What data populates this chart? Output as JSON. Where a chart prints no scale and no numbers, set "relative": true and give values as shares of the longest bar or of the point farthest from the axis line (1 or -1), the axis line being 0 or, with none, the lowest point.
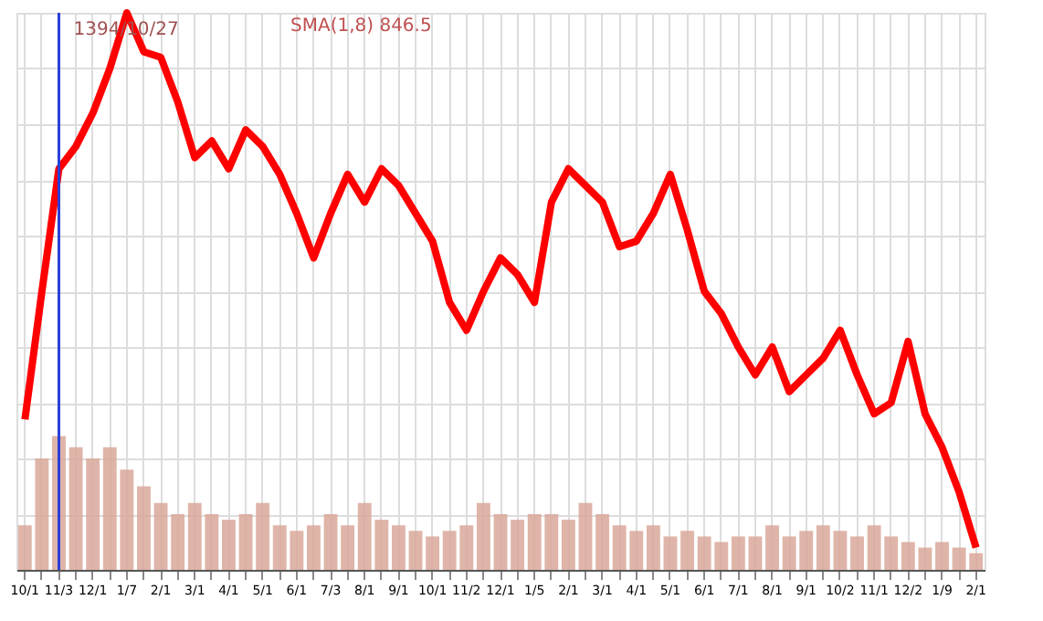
{
  "chart_data": {
    "type": "line",
    "relative": true,
    "grid": true,
    "line_style": "solid",
    "marker": "none",
    "categories": [
      "10/1",
      null,
      "11/3",
      null,
      "12/1",
      null,
      "1/7",
      null,
      "2/1",
      null,
      "3/1",
      null,
      "4/1",
      null,
      "5/1",
      null,
      "6/1",
      null,
      "7/3",
      null,
      "8/1",
      null,
      "9/1",
      null,
      "10/1",
      null,
      "11/2",
      null,
      "12/1",
      null,
      "1/5",
      null,
      "2/1",
      null,
      "3/1",
      null,
      "4/1",
      null,
      "5/1",
      null,
      "6/1",
      null,
      "7/1",
      null,
      "8/1",
      null,
      "9/1",
      null,
      "10/2",
      null,
      "11/1",
      null,
      "12/2",
      null,
      "1/9",
      null,
      "2/1"
    ],
    "series": [
      {
        "type": "bar",
        "color": "#d9a89a",
        "values": [
          0.08,
          0.2,
          0.24,
          0.22,
          0.2,
          0.22,
          0.18,
          0.15,
          0.12,
          0.1,
          0.12,
          0.1,
          0.09,
          0.1,
          0.12,
          0.08,
          0.07,
          0.08,
          0.1,
          0.08,
          0.12,
          0.09,
          0.08,
          0.07,
          0.06,
          0.07,
          0.08,
          0.12,
          0.1,
          0.09,
          0.1,
          0.1,
          0.09,
          0.12,
          0.1,
          0.08,
          0.07,
          0.08,
          0.06,
          0.07,
          0.06,
          0.05,
          0.06,
          0.06,
          0.08,
          0.06,
          0.07,
          0.08,
          0.07,
          0.06,
          0.08,
          0.06,
          0.05,
          0.04,
          0.05,
          0.04,
          0.03
        ]
      },
      {
        "color": "#ff0000",
        "values": [
          0.27,
          0.5,
          0.72,
          0.76,
          0.82,
          0.9,
          1.0,
          0.93,
          0.92,
          0.84,
          0.74,
          0.77,
          0.72,
          0.79,
          0.76,
          0.71,
          0.64,
          0.56,
          0.64,
          0.71,
          0.66,
          0.72,
          0.69,
          0.64,
          0.59,
          0.48,
          0.43,
          0.5,
          0.56,
          0.53,
          0.48,
          0.66,
          0.72,
          0.69,
          0.66,
          0.58,
          0.59,
          0.64,
          0.71,
          0.61,
          0.5,
          0.46,
          0.4,
          0.35,
          0.4,
          0.32,
          0.35,
          0.38,
          0.43,
          0.35,
          0.28,
          0.3,
          0.41,
          0.28,
          0.22,
          0.14,
          0.04
        ]
      }
    ],
    "ref_lines": [
      {
        "axis": "x",
        "value": "11/3",
        "label": "1394/10/27",
        "color": "#2a3fd8"
      }
    ],
    "annotations": [
      "SMA(1,8) 846.5"
    ]
  }
}
